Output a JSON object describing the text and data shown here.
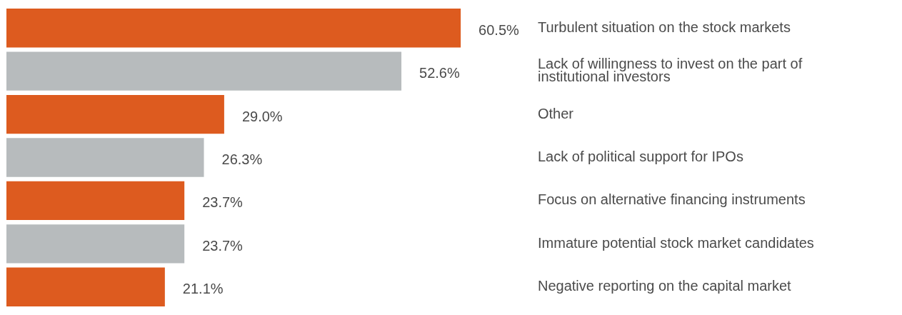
{
  "chart_data": {
    "type": "bar",
    "orientation": "horizontal",
    "categories": [
      "Turbulent situation on the stock markets",
      "Lack of willingness to invest on the part of institutional investors",
      "Other",
      "Lack of political support for IPOs",
      "Focus on alternative financing instruments",
      "Immature potential stock market candidates",
      "Negative reporting on the capital market"
    ],
    "values": [
      60.5,
      52.6,
      29.0,
      26.3,
      23.7,
      23.7,
      21.1
    ],
    "value_labels": [
      "60.5%",
      "52.6%",
      "29.0%",
      "26.3%",
      "23.7%",
      "23.7%",
      "21.1%"
    ],
    "colors": [
      "#dd5b1f",
      "#b7bbbd",
      "#dd5b1f",
      "#b7bbbd",
      "#dd5b1f",
      "#b7bbbd",
      "#dd5b1f"
    ],
    "legend": false,
    "tick_labels": "y"
  }
}
